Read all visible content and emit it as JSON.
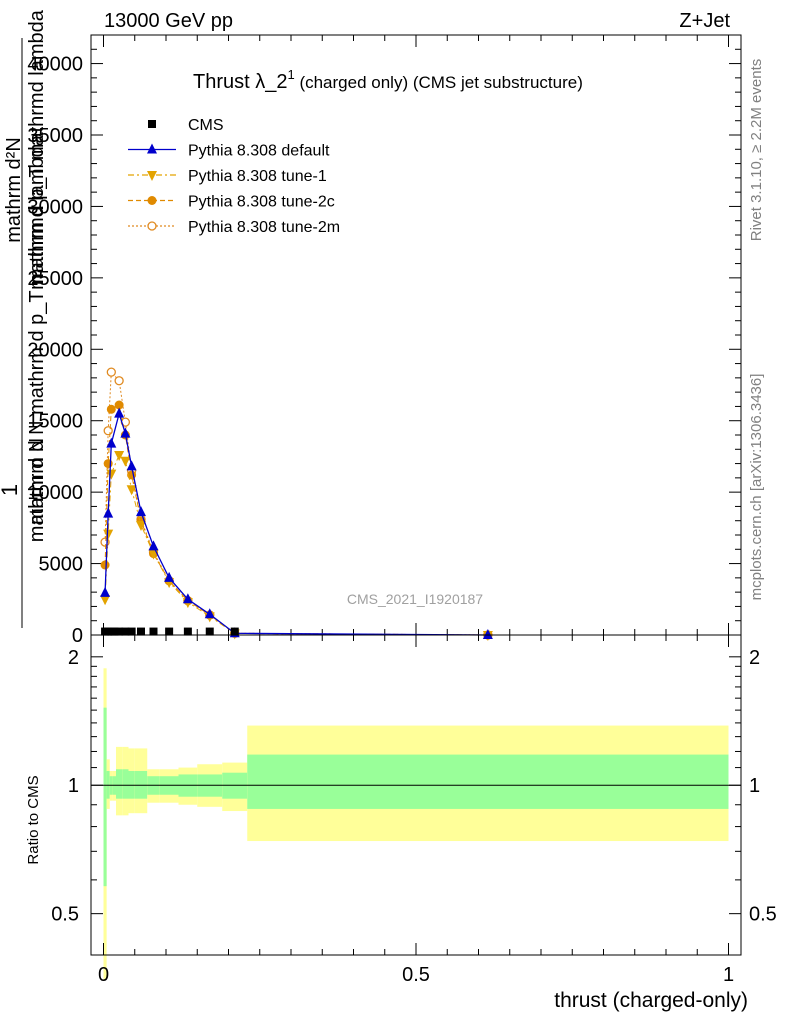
{
  "header": {
    "left": "13000 GeV pp",
    "right": "Z+Jet"
  },
  "title": {
    "main": "Thrust λ_2",
    "sup": "1",
    "rest": " (charged only) (CMS jet substructure)"
  },
  "side_labels": {
    "rivet": "Rivet 3.1.10, ≥ 2.2M events",
    "mcplots": "mcplots.cern.ch [arXiv:1306.3436]"
  },
  "watermark": "CMS_2021_I1920187",
  "ylabel_top": {
    "one": "1",
    "line1": "mathrm d N",
    "line2": "mathrm d N mathrm d p_T mathrmd lambda",
    "numerator": "mathrm d²N",
    "denom": "mathrm d p_T mathrmd lambda"
  },
  "ylabel_bottom": "Ratio to CMS",
  "xlabel": "thrust (charged-only)",
  "legend": [
    {
      "label": "CMS",
      "color": "#000000",
      "marker": "square",
      "dash": ""
    },
    {
      "label": "Pythia 8.308 default",
      "color": "#0000cc",
      "marker": "triangle-up",
      "dash": ""
    },
    {
      "label": "Pythia 8.308 tune-1",
      "color": "#e3a300",
      "marker": "triangle-down",
      "dash": "6,3,2,3"
    },
    {
      "label": "Pythia 8.308 tune-2c",
      "color": "#e08a00",
      "marker": "circle",
      "dash": "5,3"
    },
    {
      "label": "Pythia 8.308 tune-2m",
      "color": "#e08a20",
      "marker": "circle-open",
      "dash": "2,2"
    }
  ],
  "chart_data": [
    {
      "type": "line",
      "xlim": [
        -0.02,
        1.02
      ],
      "ylim": [
        0,
        42000
      ],
      "yticks": [
        {
          "v": 0,
          "label": "0"
        },
        {
          "v": 5000,
          "label": "5000"
        },
        {
          "v": 10000,
          "label": "10000"
        },
        {
          "v": 15000,
          "label": "15000"
        },
        {
          "v": 20000,
          "label": "20000"
        },
        {
          "v": 25000,
          "label": "25000"
        },
        {
          "v": 30000,
          "label": "30000"
        },
        {
          "v": 35000,
          "label": "35000"
        },
        {
          "v": 40000,
          "label": "40000"
        }
      ],
      "series": [
        {
          "name": "CMS",
          "x": [
            0.0025,
            0.0075,
            0.0125,
            0.0175,
            0.025,
            0.035,
            0.045,
            0.06,
            0.08,
            0.105,
            0.135,
            0.17,
            0.21
          ],
          "values": [
            30,
            30,
            30,
            30,
            30,
            30,
            30,
            30,
            30,
            30,
            30,
            30,
            30
          ]
        },
        {
          "name": "Pythia 8.308 default",
          "x": [
            0.0025,
            0.0075,
            0.0125,
            0.025,
            0.035,
            0.045,
            0.06,
            0.08,
            0.105,
            0.135,
            0.17,
            0.21,
            0.615
          ],
          "values": [
            2950,
            8500,
            13400,
            15500,
            14100,
            11800,
            8600,
            6200,
            4000,
            2500,
            1450,
            120,
            0
          ]
        },
        {
          "name": "Pythia 8.308 tune-1",
          "x": [
            0.0025,
            0.0075,
            0.0125,
            0.025,
            0.035,
            0.045,
            0.06,
            0.08,
            0.105,
            0.135,
            0.17,
            0.21,
            0.615
          ],
          "values": [
            2500,
            7100,
            11300,
            12600,
            12200,
            10200,
            7700,
            5700,
            3700,
            2300,
            1300,
            110,
            0
          ]
        },
        {
          "name": "Pythia 8.308 tune-2c",
          "x": [
            0.0025,
            0.0075,
            0.0125,
            0.025,
            0.035,
            0.045,
            0.06,
            0.08,
            0.105,
            0.135,
            0.17,
            0.21,
            0.615
          ],
          "values": [
            4900,
            12000,
            15800,
            16100,
            14000,
            11200,
            8000,
            5700,
            3800,
            2400,
            1400,
            120,
            0
          ]
        },
        {
          "name": "Pythia 8.308 tune-2m",
          "x": [
            0.0025,
            0.0075,
            0.0125,
            0.025,
            0.035,
            0.045,
            0.06,
            0.08,
            0.105,
            0.135,
            0.17,
            0.21,
            0.615
          ],
          "values": [
            6500,
            14300,
            18400,
            17800,
            14900,
            11500,
            8100,
            5800,
            3800,
            2400,
            1400,
            120,
            0
          ]
        }
      ]
    },
    {
      "type": "area",
      "xlim": [
        -0.02,
        1.02
      ],
      "ylim": [
        0.4,
        2.25
      ],
      "yticks": [
        {
          "v": 0.5,
          "label": "0.5"
        },
        {
          "v": 1,
          "label": "1"
        },
        {
          "v": 2,
          "label": "2"
        }
      ],
      "xticks": [
        {
          "v": 0,
          "label": "0"
        },
        {
          "v": 0.5,
          "label": "0.5"
        },
        {
          "v": 1,
          "label": "1"
        }
      ],
      "bins": [
        0,
        0.005,
        0.01,
        0.015,
        0.02,
        0.03,
        0.04,
        0.05,
        0.07,
        0.09,
        0.12,
        0.15,
        0.19,
        0.23,
        1.0
      ],
      "band_outer": {
        "lo": [
          0.35,
          0.88,
          0.92,
          0.92,
          0.85,
          0.85,
          0.86,
          0.86,
          0.91,
          0.91,
          0.9,
          0.89,
          0.87,
          0.74
        ],
        "hi": [
          1.88,
          1.15,
          1.08,
          1.08,
          1.23,
          1.23,
          1.22,
          1.22,
          1.09,
          1.09,
          1.1,
          1.12,
          1.13,
          1.38
        ]
      },
      "band_inner": {
        "lo": [
          0.58,
          0.93,
          0.95,
          0.95,
          0.93,
          0.93,
          0.93,
          0.93,
          0.95,
          0.95,
          0.94,
          0.94,
          0.93,
          0.88
        ],
        "hi": [
          1.52,
          1.08,
          1.05,
          1.05,
          1.09,
          1.09,
          1.08,
          1.08,
          1.05,
          1.05,
          1.06,
          1.06,
          1.07,
          1.18
        ]
      },
      "colors": {
        "outer": "#ffff99",
        "inner": "#99ff99"
      },
      "reference_line": 1
    }
  ]
}
